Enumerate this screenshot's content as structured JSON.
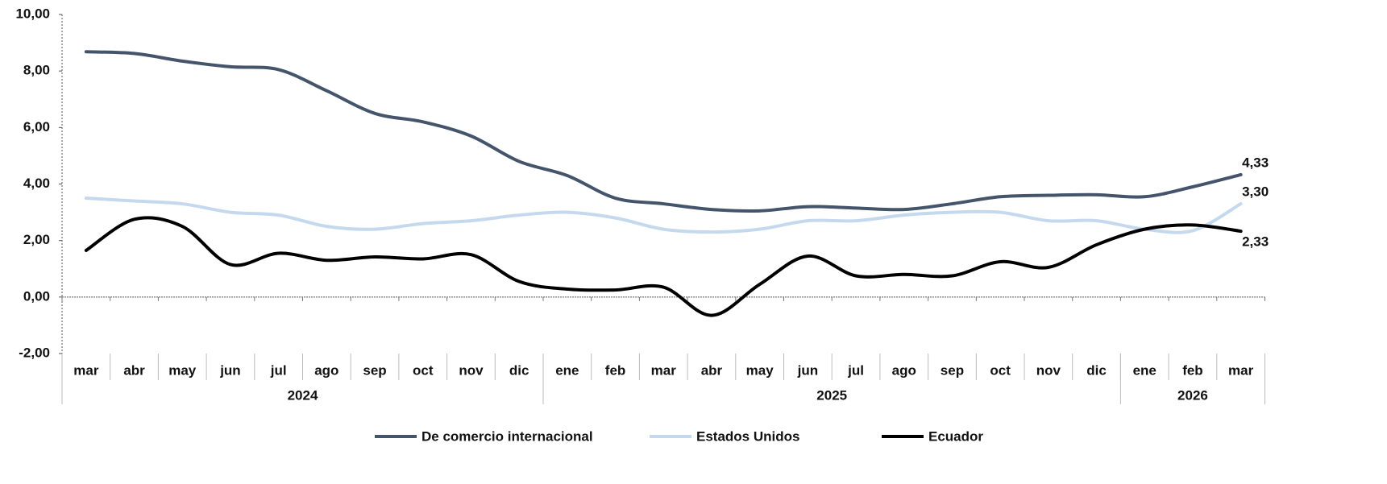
{
  "chart_data": {
    "type": "line",
    "categories": [
      "mar",
      "abr",
      "may",
      "jun",
      "jul",
      "ago",
      "sep",
      "oct",
      "nov",
      "dic",
      "ene",
      "feb",
      "mar",
      "abr",
      "may",
      "jun",
      "jul",
      "ago",
      "sep",
      "oct",
      "nov",
      "dic",
      "ene",
      "feb",
      "mar"
    ],
    "year_groups": [
      {
        "label": "2024",
        "span": 10
      },
      {
        "label": "2025",
        "span": 12
      },
      {
        "label": "2026",
        "span": 3
      }
    ],
    "series": [
      {
        "name": "De comercio internacional",
        "color": "#44546a",
        "values": [
          8.68,
          8.62,
          8.35,
          8.15,
          8.05,
          7.3,
          6.5,
          6.2,
          5.7,
          4.8,
          4.3,
          3.5,
          3.3,
          3.1,
          3.05,
          3.2,
          3.15,
          3.1,
          3.3,
          3.55,
          3.6,
          3.62,
          3.55,
          3.9,
          4.33
        ],
        "value_labels": [
          null,
          null,
          null,
          null,
          null,
          null,
          null,
          null,
          null,
          null,
          null,
          null,
          null,
          null,
          null,
          null,
          null,
          null,
          null,
          null,
          null,
          null,
          null,
          null,
          "4,33"
        ]
      },
      {
        "name": "Estados Unidos",
        "color": "#c5d9ee",
        "values": [
          3.5,
          3.4,
          3.3,
          3.0,
          2.9,
          2.5,
          2.4,
          2.6,
          2.7,
          2.9,
          3.0,
          2.8,
          2.4,
          2.3,
          2.4,
          2.7,
          2.7,
          2.9,
          3.0,
          3.0,
          2.7,
          2.7,
          2.4,
          2.35,
          3.3
        ],
        "value_labels": [
          null,
          null,
          null,
          null,
          null,
          null,
          null,
          null,
          null,
          null,
          null,
          null,
          null,
          null,
          null,
          null,
          null,
          null,
          null,
          null,
          null,
          null,
          null,
          null,
          "3,30"
        ]
      },
      {
        "name": "Ecuador",
        "color": "#000000",
        "values": [
          1.65,
          2.75,
          2.5,
          1.15,
          1.55,
          1.3,
          1.42,
          1.35,
          1.5,
          0.55,
          0.28,
          0.25,
          0.35,
          -0.65,
          0.45,
          1.45,
          0.75,
          0.8,
          0.75,
          1.25,
          1.05,
          1.85,
          2.4,
          2.55,
          2.33
        ],
        "value_labels": [
          null,
          null,
          null,
          null,
          null,
          null,
          null,
          null,
          null,
          null,
          null,
          null,
          null,
          null,
          null,
          null,
          null,
          null,
          null,
          null,
          null,
          null,
          null,
          null,
          "2,33"
        ]
      }
    ],
    "ylim": [
      -2,
      10
    ],
    "yticks": [
      {
        "value": -2,
        "label": "-2,00"
      },
      {
        "value": 0,
        "label": "0,00"
      },
      {
        "value": 2,
        "label": "2,00"
      },
      {
        "value": 4,
        "label": "4,00"
      },
      {
        "value": 6,
        "label": "6,00"
      },
      {
        "value": 8,
        "label": "8,00"
      },
      {
        "value": 10,
        "label": "10,00"
      }
    ],
    "grid": false,
    "legend": "bottom"
  }
}
